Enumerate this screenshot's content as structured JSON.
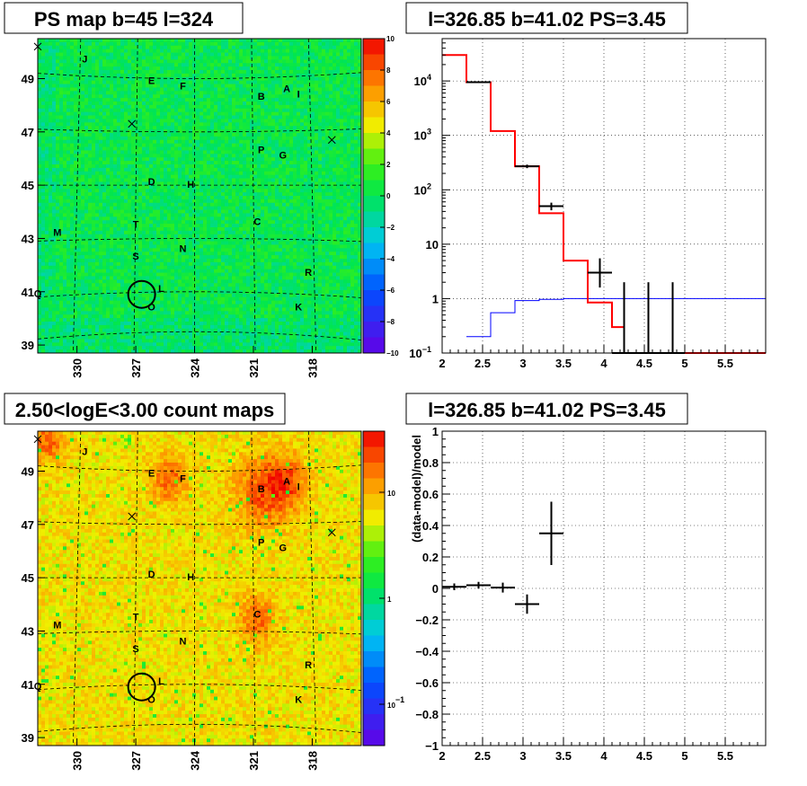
{
  "chart_data": [
    {
      "type": "heatmap",
      "title": "PS map b=45 l=324",
      "x_ticks": [
        "330",
        "327",
        "324",
        "321",
        "318"
      ],
      "y_ticks": [
        "39",
        "41",
        "43",
        "45",
        "47",
        "49"
      ],
      "xlim": [
        332,
        315.5
      ],
      "ylim": [
        38.7,
        50.5
      ],
      "colorbar": {
        "min": -10,
        "max": 10,
        "ticks": [
          "10",
          "8",
          "6",
          "4",
          "2",
          "0",
          "−2",
          "−4",
          "−6",
          "−8",
          "−10"
        ]
      },
      "source_labels": [
        {
          "text": "J",
          "l": 329.6,
          "b": 49.6
        },
        {
          "text": "E",
          "l": 326.2,
          "b": 48.8
        },
        {
          "text": "F",
          "l": 324.6,
          "b": 48.6
        },
        {
          "text": "B",
          "l": 320.6,
          "b": 48.2
        },
        {
          "text": "A",
          "l": 319.3,
          "b": 48.5
        },
        {
          "text": "I",
          "l": 318.7,
          "b": 48.3
        },
        {
          "text": "P",
          "l": 320.6,
          "b": 46.2
        },
        {
          "text": "G",
          "l": 319.5,
          "b": 46.0
        },
        {
          "text": "D",
          "l": 326.2,
          "b": 45.0
        },
        {
          "text": "H",
          "l": 324.2,
          "b": 44.9
        },
        {
          "text": "C",
          "l": 320.8,
          "b": 43.5
        },
        {
          "text": "T",
          "l": 327.0,
          "b": 43.4
        },
        {
          "text": "M",
          "l": 331.0,
          "b": 43.1
        },
        {
          "text": "N",
          "l": 324.6,
          "b": 42.5
        },
        {
          "text": "S",
          "l": 327.0,
          "b": 42.2
        },
        {
          "text": "R",
          "l": 318.2,
          "b": 41.6
        },
        {
          "text": "L",
          "l": 325.7,
          "b": 41.0
        },
        {
          "text": "K",
          "l": 318.7,
          "b": 40.3
        },
        {
          "text": "Q",
          "l": 332.0,
          "b": 40.8
        },
        {
          "text": "O",
          "l": 326.2,
          "b": 40.3
        }
      ],
      "crosses": [
        {
          "l": 332.0,
          "b": 50.2
        },
        {
          "l": 327.2,
          "b": 47.3
        },
        {
          "l": 317.0,
          "b": 46.7
        }
      ],
      "circle": {
        "l": 326.7,
        "b": 40.9
      }
    },
    {
      "type": "line",
      "title": "l=326.85 b=41.02 PS=3.45",
      "xlim": [
        2,
        6
      ],
      "ylim": [
        0.1,
        60000
      ],
      "y_scale": "log",
      "x_ticks": [
        "2",
        "2.5",
        "3",
        "3.5",
        "4",
        "4.5",
        "5",
        "5.5"
      ],
      "y_ticks": [
        {
          "v": 10000,
          "label": "10",
          "exp": "4"
        },
        {
          "v": 1000,
          "label": "10",
          "exp": "3"
        },
        {
          "v": 100,
          "label": "10",
          "exp": "2"
        },
        {
          "v": 10,
          "label": "10",
          "exp": ""
        },
        {
          "v": 1,
          "label": "1",
          "exp": ""
        },
        {
          "v": 0.1,
          "label": "10",
          "exp": "−1"
        }
      ],
      "grid": true,
      "model_total": {
        "color": "#ff0000",
        "bins": [
          [
            2,
            2.3,
            30000
          ],
          [
            2.3,
            2.6,
            9500
          ],
          [
            2.6,
            2.9,
            1200
          ],
          [
            2.9,
            3.2,
            270
          ],
          [
            3.2,
            3.5,
            37
          ],
          [
            3.5,
            3.8,
            5
          ],
          [
            3.8,
            4.1,
            0.85
          ],
          [
            4.1,
            4.25,
            0.3
          ],
          [
            4.25,
            4.4,
            0.1
          ],
          [
            4.4,
            6,
            0.1
          ]
        ]
      },
      "model_bkg": {
        "color": "#0000ff",
        "bins": [
          [
            2.3,
            2.6,
            0.2
          ],
          [
            2.6,
            2.9,
            0.55
          ],
          [
            2.9,
            3.2,
            0.92
          ],
          [
            3.2,
            3.5,
            0.97
          ],
          [
            3.5,
            3.8,
            1.0
          ],
          [
            3.8,
            6,
            1.0
          ]
        ]
      },
      "data": [
        {
          "x": 2.45,
          "dx": 0.15,
          "y": 9500,
          "lo": 9200,
          "hi": 9800
        },
        {
          "x": 3.05,
          "dx": 0.15,
          "y": 270,
          "lo": 250,
          "hi": 290
        },
        {
          "x": 3.35,
          "dx": 0.15,
          "y": 50,
          "lo": 42,
          "hi": 58
        },
        {
          "x": 3.95,
          "dx": 0.15,
          "y": 3,
          "lo": 1.6,
          "hi": 5.5
        },
        {
          "x": 4.25,
          "dx": 0.15,
          "y": 0.1,
          "lo": 0.1,
          "hi": 2
        },
        {
          "x": 4.55,
          "dx": 0.15,
          "y": 0.1,
          "lo": 0.1,
          "hi": 2
        },
        {
          "x": 4.85,
          "dx": 0.15,
          "y": 0.1,
          "lo": 0.1,
          "hi": 2
        }
      ]
    },
    {
      "type": "heatmap",
      "title": "2.50<logE<3.00 count maps",
      "x_ticks": [
        "330",
        "327",
        "324",
        "321",
        "318"
      ],
      "y_ticks": [
        "39",
        "41",
        "43",
        "45",
        "47",
        "49"
      ],
      "xlim": [
        332,
        315.5
      ],
      "ylim": [
        38.7,
        50.5
      ],
      "colorbar": {
        "scale": "log",
        "ticks": [
          {
            "v": 10,
            "label": "10",
            "exp": ""
          },
          {
            "v": 1,
            "label": "1",
            "exp": ""
          },
          {
            "v": 0.1,
            "label": "10",
            "exp": "−1"
          }
        ]
      },
      "hotspots": [
        {
          "l": 320.6,
          "b": 48.2,
          "r": 1.4
        },
        {
          "l": 319.3,
          "b": 48.6,
          "r": 1.0
        },
        {
          "l": 320.8,
          "b": 43.4,
          "r": 0.9
        },
        {
          "l": 325.3,
          "b": 48.7,
          "r": 0.9
        },
        {
          "l": 331.5,
          "b": 50.2,
          "r": 0.9
        }
      ],
      "source_labels_ref": 0
    },
    {
      "type": "scatter",
      "title": "l=326.85 b=41.02 PS=3.45",
      "ylabel": "(data-model)/model",
      "xlim": [
        2,
        6
      ],
      "ylim": [
        -1,
        1
      ],
      "x_ticks": [
        "2",
        "2.5",
        "3",
        "3.5",
        "4",
        "4.5",
        "5",
        "5.5"
      ],
      "y_ticks": [
        "1",
        "0.8",
        "0.6",
        "0.4",
        "0.2",
        "0",
        "−0.2",
        "−0.4",
        "−0.6",
        "−0.8",
        "−1"
      ],
      "grid": true,
      "points": [
        {
          "x": 2.15,
          "dx": 0.15,
          "y": 0.01,
          "err": 0.01
        },
        {
          "x": 2.45,
          "dx": 0.15,
          "y": 0.02,
          "err": 0.01
        },
        {
          "x": 2.75,
          "dx": 0.15,
          "y": 0.005,
          "err": 0.02
        },
        {
          "x": 3.05,
          "dx": 0.15,
          "y": -0.1,
          "err": 0.05
        },
        {
          "x": 3.35,
          "dx": 0.15,
          "y": 0.35,
          "err": 0.19
        }
      ]
    }
  ]
}
